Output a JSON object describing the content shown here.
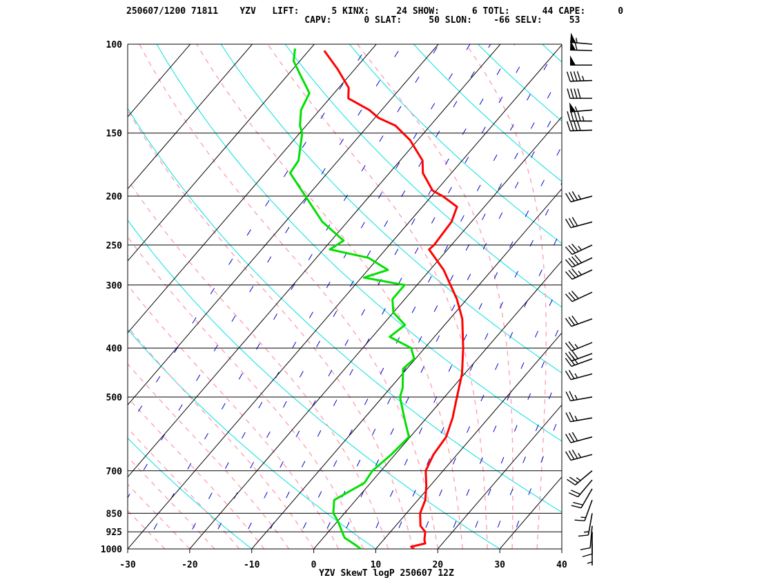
{
  "header": {
    "line1": "250607/1200 71811    YZV   LIFT:      5 KINX:     24 SHOW:      6 TOTL:      44 CAPE:      0",
    "line2": "                                 CAPV:      0 SLAT:     50 SLON:    -66 SELV:     53"
  },
  "chart_data": {
    "type": "line",
    "title": "YZV SkewT logP 250607 12Z",
    "xlim": [
      -30,
      40
    ],
    "ylim_pressure": [
      1000,
      100
    ],
    "x_ticks": [
      -30,
      -20,
      -10,
      0,
      10,
      20,
      30,
      40
    ],
    "pressure_levels": [
      100,
      150,
      200,
      250,
      300,
      400,
      500,
      700,
      850,
      925,
      1000
    ],
    "series": [
      {
        "color": "#ff0000",
        "points": [
          [
            1000,
            16.2
          ],
          [
            990,
            15.4
          ],
          [
            975,
            17.2
          ],
          [
            960,
            16.6
          ],
          [
            925,
            15.6
          ],
          [
            900,
            14.0
          ],
          [
            850,
            12.2
          ],
          [
            800,
            11.2
          ],
          [
            750,
            9.4
          ],
          [
            700,
            7.2
          ],
          [
            650,
            6.2
          ],
          [
            600,
            5.8
          ],
          [
            550,
            4.2
          ],
          [
            500,
            2.0
          ],
          [
            450,
            -0.4
          ],
          [
            400,
            -3.8
          ],
          [
            350,
            -8.0
          ],
          [
            320,
            -11.6
          ],
          [
            300,
            -14.6
          ],
          [
            280,
            -17.8
          ],
          [
            255,
            -23.0
          ],
          [
            250,
            -22.8
          ],
          [
            225,
            -23.2
          ],
          [
            210,
            -24.4
          ],
          [
            200,
            -28.2
          ],
          [
            195,
            -30.6
          ],
          [
            180,
            -34.6
          ],
          [
            170,
            -36.4
          ],
          [
            155,
            -41.2
          ],
          [
            145,
            -45.6
          ],
          [
            140,
            -49.4
          ],
          [
            135,
            -52.0
          ],
          [
            128,
            -57.0
          ],
          [
            122,
            -58.4
          ],
          [
            112,
            -62.8
          ],
          [
            103,
            -67.5
          ]
        ]
      },
      {
        "color": "#00e000",
        "points": [
          [
            1000,
            7.6
          ],
          [
            980,
            6.0
          ],
          [
            950,
            3.4
          ],
          [
            925,
            2.2
          ],
          [
            880,
            0.0
          ],
          [
            850,
            -1.8
          ],
          [
            800,
            -3.5
          ],
          [
            740,
            -1.0
          ],
          [
            700,
            -1.4
          ],
          [
            650,
            -0.6
          ],
          [
            600,
            -0.2
          ],
          [
            550,
            -3.6
          ],
          [
            500,
            -7.2
          ],
          [
            480,
            -8.0
          ],
          [
            440,
            -10.6
          ],
          [
            420,
            -10.2
          ],
          [
            400,
            -12.2
          ],
          [
            380,
            -17.2
          ],
          [
            360,
            -16.4
          ],
          [
            340,
            -20.0
          ],
          [
            320,
            -22.0
          ],
          [
            300,
            -22.0
          ],
          [
            290,
            -29.6
          ],
          [
            280,
            -26.8
          ],
          [
            265,
            -31.6
          ],
          [
            255,
            -39.0
          ],
          [
            245,
            -38.0
          ],
          [
            225,
            -44.0
          ],
          [
            205,
            -49.0
          ],
          [
            180,
            -56.0
          ],
          [
            170,
            -56.4
          ],
          [
            150,
            -59.6
          ],
          [
            145,
            -61.0
          ],
          [
            135,
            -63.0
          ],
          [
            125,
            -64.0
          ],
          [
            115,
            -68.0
          ],
          [
            108,
            -71.0
          ],
          [
            102,
            -72.5
          ]
        ]
      }
    ],
    "isotherm_color": "#000000",
    "dry_adiabat_color": "#00e0e0",
    "moist_adiabat_color": "#ffa0b4",
    "mixing_ratio_color": "#0000cc",
    "wind_barbs": [
      {
        "p": 100,
        "dir": 275,
        "spd": 55
      },
      {
        "p": 103,
        "dir": 272,
        "spd": 60
      },
      {
        "p": 110,
        "dir": 270,
        "spd": 50
      },
      {
        "p": 118,
        "dir": 268,
        "spd": 45
      },
      {
        "p": 128,
        "dir": 270,
        "spd": 40
      },
      {
        "p": 135,
        "dir": 265,
        "spd": 55
      },
      {
        "p": 142,
        "dir": 270,
        "spd": 45
      },
      {
        "p": 148,
        "dir": 268,
        "spd": 40
      },
      {
        "p": 200,
        "dir": 255,
        "spd": 35
      },
      {
        "p": 225,
        "dir": 255,
        "spd": 30
      },
      {
        "p": 250,
        "dir": 245,
        "spd": 35
      },
      {
        "p": 265,
        "dir": 245,
        "spd": 40
      },
      {
        "p": 280,
        "dir": 245,
        "spd": 35
      },
      {
        "p": 310,
        "dir": 245,
        "spd": 30
      },
      {
        "p": 350,
        "dir": 250,
        "spd": 30
      },
      {
        "p": 390,
        "dir": 248,
        "spd": 25
      },
      {
        "p": 410,
        "dir": 250,
        "spd": 30
      },
      {
        "p": 420,
        "dir": 250,
        "spd": 30
      },
      {
        "p": 450,
        "dir": 255,
        "spd": 25
      },
      {
        "p": 500,
        "dir": 260,
        "spd": 25
      },
      {
        "p": 550,
        "dir": 260,
        "spd": 25
      },
      {
        "p": 600,
        "dir": 255,
        "spd": 30
      },
      {
        "p": 650,
        "dir": 255,
        "spd": 35
      },
      {
        "p": 700,
        "dir": 230,
        "spd": 25
      },
      {
        "p": 730,
        "dir": 220,
        "spd": 20
      },
      {
        "p": 760,
        "dir": 210,
        "spd": 20
      },
      {
        "p": 800,
        "dir": 200,
        "spd": 15
      },
      {
        "p": 850,
        "dir": 190,
        "spd": 15
      },
      {
        "p": 900,
        "dir": 185,
        "spd": 10
      },
      {
        "p": 925,
        "dir": 180,
        "spd": 10
      },
      {
        "p": 975,
        "dir": 180,
        "spd": 5
      }
    ]
  }
}
